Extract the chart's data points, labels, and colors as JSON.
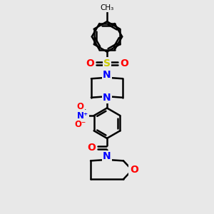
{
  "bg_color": "#e8e8e8",
  "bond_color": "#000000",
  "N_color": "#0000ff",
  "O_color": "#ff0000",
  "S_color": "#cccc00",
  "line_width": 1.8,
  "figsize": [
    3.0,
    3.0
  ],
  "dpi": 100,
  "xlim": [
    0,
    10
  ],
  "ylim": [
    0,
    10
  ]
}
